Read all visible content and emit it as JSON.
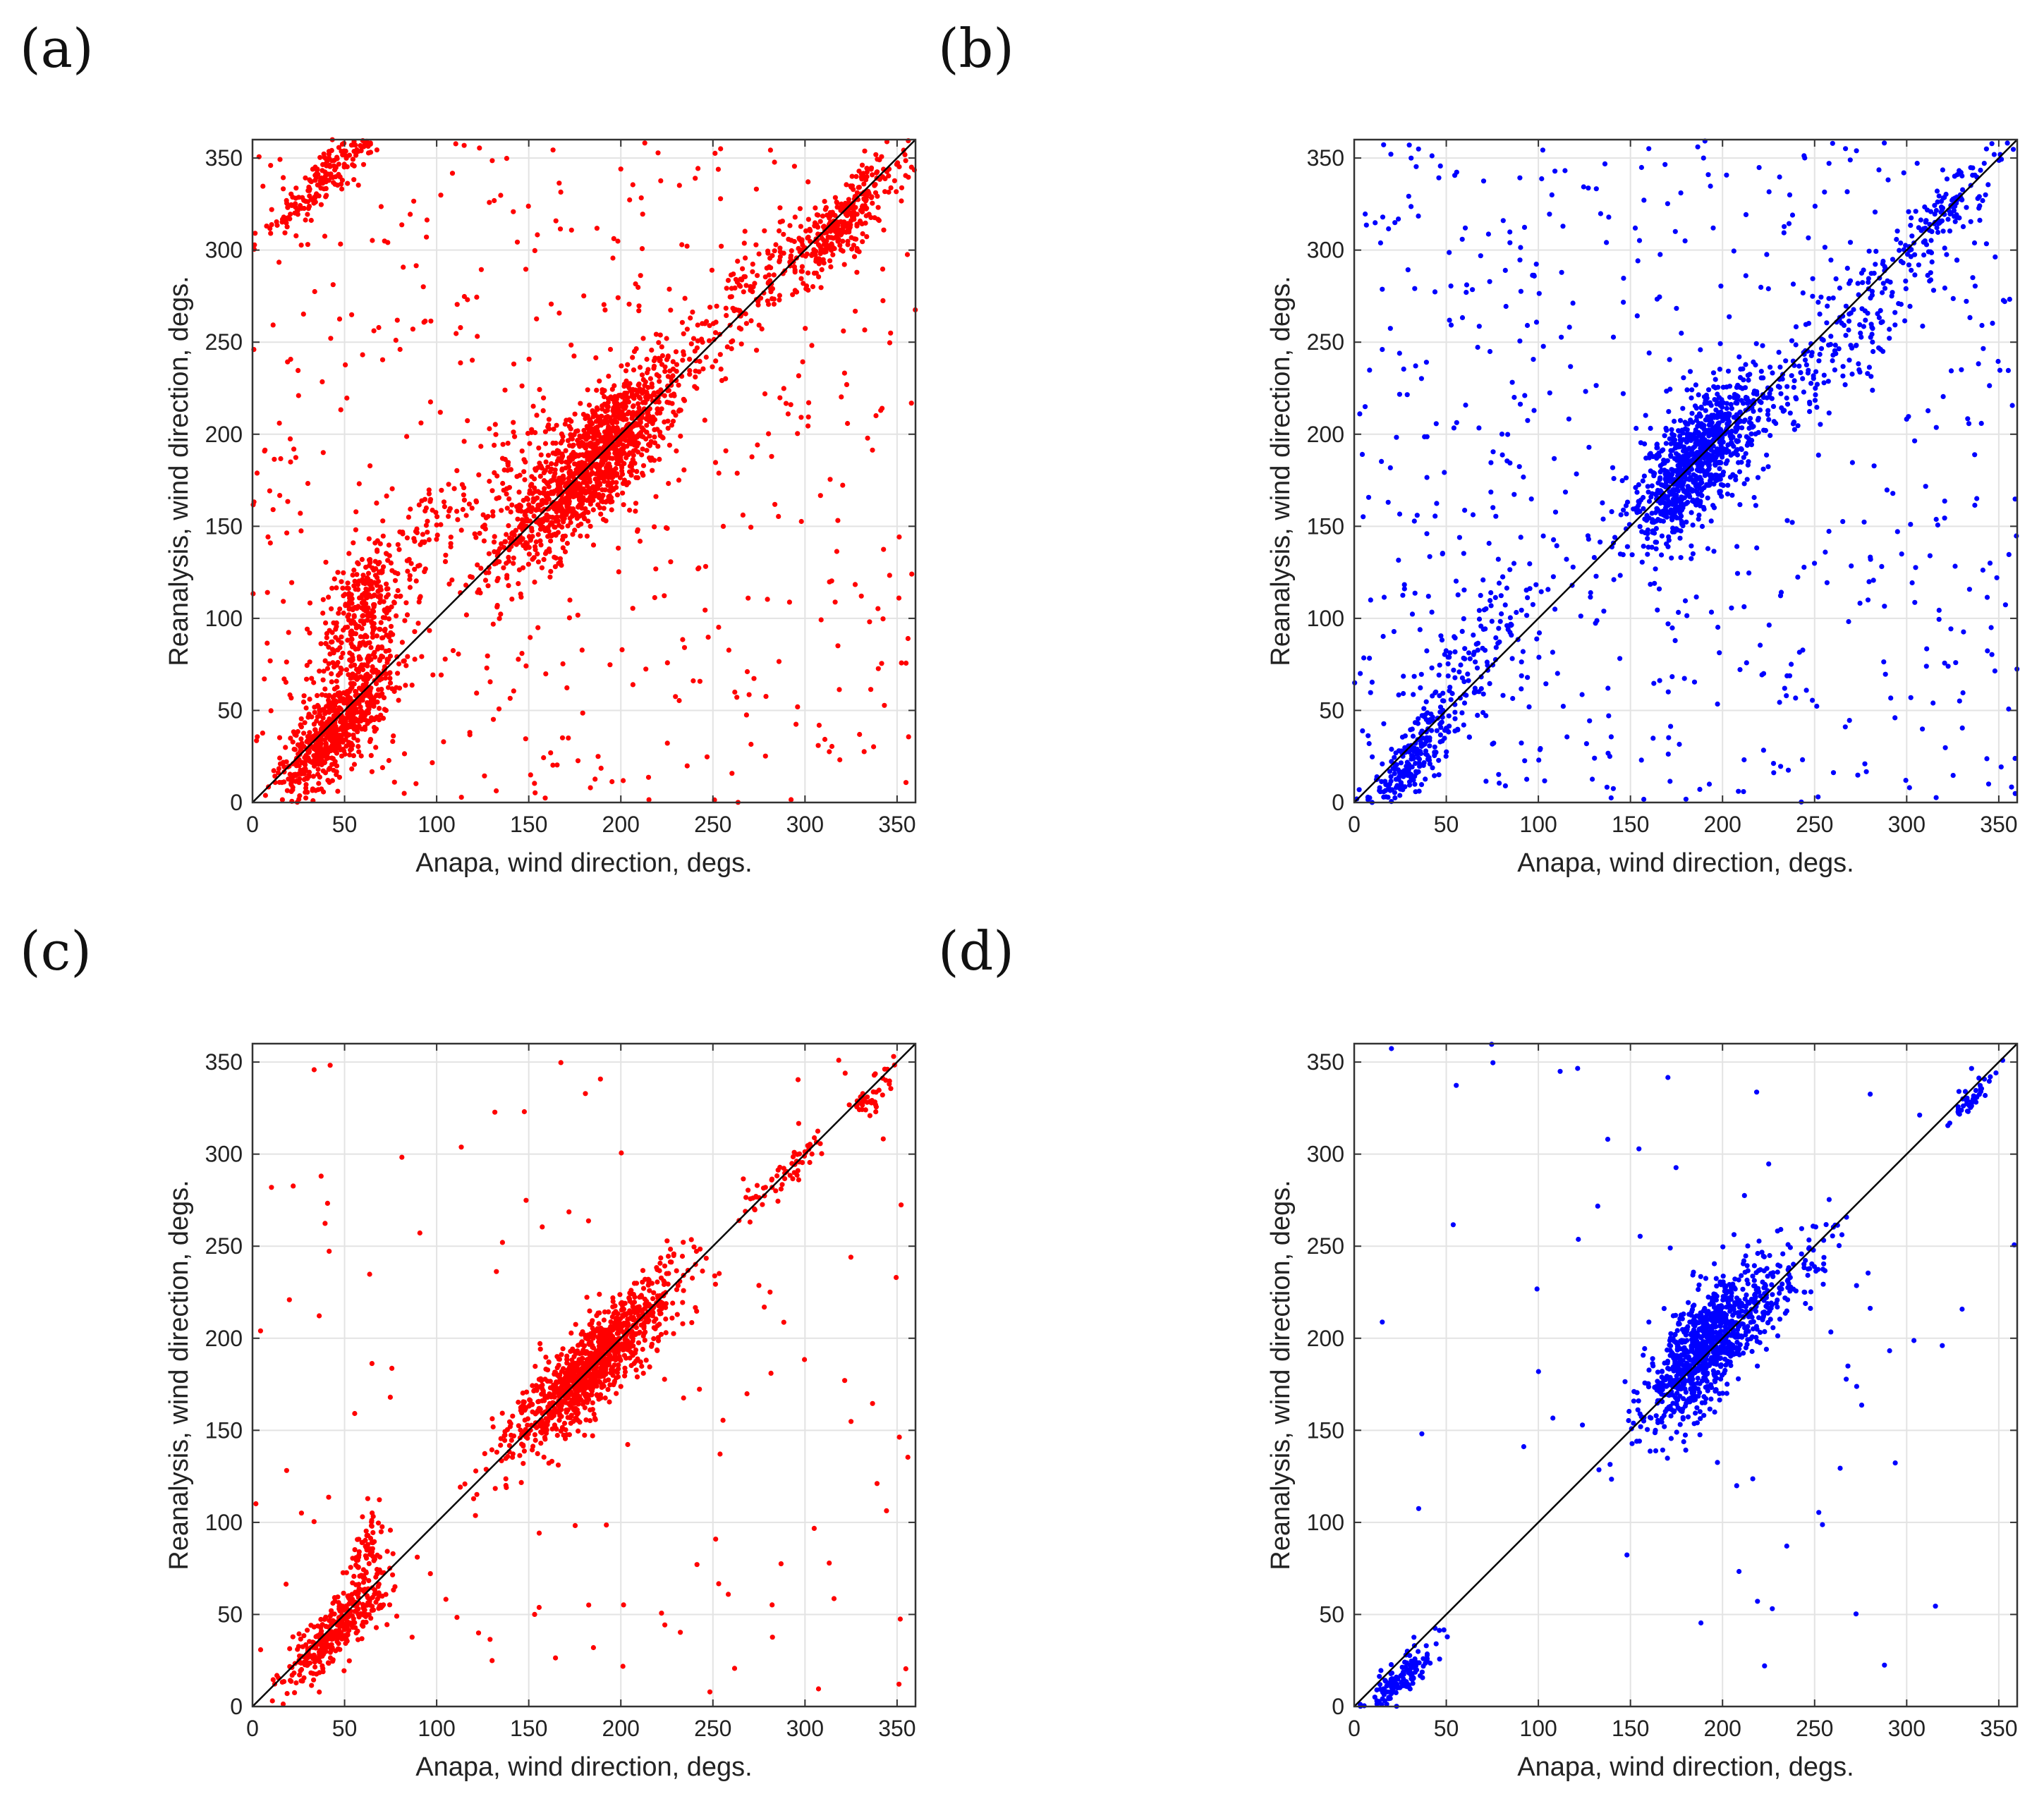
{
  "chart_data": [
    {
      "panel": "(a)",
      "type": "scatter",
      "color": "#ff0000",
      "xlabel": "Anapa, wind direction, degs.",
      "ylabel": "Reanalysis, wind direction, degs.",
      "xlim": [
        0,
        360
      ],
      "ylim": [
        0,
        360
      ],
      "xticks": [
        0,
        50,
        100,
        150,
        200,
        250,
        300,
        350
      ],
      "yticks": [
        0,
        50,
        100,
        150,
        200,
        250,
        300,
        350
      ],
      "grid": true,
      "reference_line": {
        "from": [
          0,
          0
        ],
        "to": [
          360,
          360
        ]
      },
      "clusters": [
        {
          "cx": 185,
          "cy": 185,
          "sx": 25,
          "sy": 30,
          "n": 1300
        },
        {
          "cx": 45,
          "cy": 40,
          "sx": 15,
          "sy": 22,
          "n": 700
        },
        {
          "cx": 60,
          "cy": 100,
          "sx": 12,
          "sy": 35,
          "n": 300
        },
        {
          "cx": 320,
          "cy": 315,
          "sx": 18,
          "sy": 18,
          "n": 350
        },
        {
          "cx": 40,
          "cy": 340,
          "sx": 20,
          "sy": 12,
          "n": 200
        },
        {
          "cx": 100,
          "cy": 150,
          "sx": 40,
          "sy": 20,
          "n": 150
        },
        {
          "cx": 270,
          "cy": 280,
          "sx": 18,
          "sy": 20,
          "n": 120
        }
      ],
      "background_points": 500
    },
    {
      "panel": "(b)",
      "type": "scatter",
      "color": "#0000ff",
      "xlabel": "Anapa, wind direction, degs.",
      "ylabel": "Reanalysis, wind direction, degs.",
      "xlim": [
        0,
        360
      ],
      "ylim": [
        0,
        360
      ],
      "xticks": [
        0,
        50,
        100,
        150,
        200,
        250,
        300,
        350
      ],
      "yticks": [
        0,
        50,
        100,
        150,
        200,
        250,
        300,
        350
      ],
      "grid": true,
      "reference_line": {
        "from": [
          0,
          0
        ],
        "to": [
          360,
          360
        ]
      },
      "clusters": [
        {
          "cx": 185,
          "cy": 185,
          "sx": 18,
          "sy": 30,
          "n": 900
        },
        {
          "cx": 30,
          "cy": 20,
          "sx": 12,
          "sy": 15,
          "n": 200
        },
        {
          "cx": 60,
          "cy": 70,
          "sx": 20,
          "sy": 30,
          "n": 150
        },
        {
          "cx": 270,
          "cy": 260,
          "sx": 30,
          "sy": 30,
          "n": 200
        },
        {
          "cx": 320,
          "cy": 320,
          "sx": 15,
          "sy": 15,
          "n": 100
        }
      ],
      "background_points": 600
    },
    {
      "panel": "(c)",
      "type": "scatter",
      "color": "#ff0000",
      "xlabel": "Anapa, wind direction, degs.",
      "ylabel": "Reanalysis, wind direction, degs.",
      "xlim": [
        0,
        360
      ],
      "ylim": [
        0,
        360
      ],
      "xticks": [
        0,
        50,
        100,
        150,
        200,
        250,
        300,
        350
      ],
      "yticks": [
        0,
        50,
        100,
        150,
        200,
        250,
        300,
        350
      ],
      "grid": true,
      "reference_line": {
        "from": [
          0,
          0
        ],
        "to": [
          360,
          360
        ]
      },
      "clusters": [
        {
          "cx": 185,
          "cy": 185,
          "sx": 22,
          "sy": 22,
          "n": 1100
        },
        {
          "cx": 45,
          "cy": 40,
          "sx": 15,
          "sy": 15,
          "n": 350
        },
        {
          "cx": 62,
          "cy": 85,
          "sx": 5,
          "sy": 20,
          "n": 80
        },
        {
          "cx": 290,
          "cy": 290,
          "sx": 12,
          "sy": 10,
          "n": 60
        },
        {
          "cx": 335,
          "cy": 330,
          "sx": 6,
          "sy": 10,
          "n": 40
        }
      ],
      "background_points": 120
    },
    {
      "panel": "(d)",
      "type": "scatter",
      "color": "#0000ff",
      "xlabel": "Anapa, wind direction, degs.",
      "ylabel": "Reanalysis, wind direction, degs.",
      "xlim": [
        0,
        360
      ],
      "ylim": [
        0,
        360
      ],
      "xticks": [
        0,
        50,
        100,
        150,
        200,
        250,
        300,
        350
      ],
      "yticks": [
        0,
        50,
        100,
        150,
        200,
        250,
        300,
        350
      ],
      "grid": true,
      "reference_line": {
        "from": [
          0,
          0
        ],
        "to": [
          360,
          360
        ]
      },
      "clusters": [
        {
          "cx": 190,
          "cy": 195,
          "sx": 16,
          "sy": 28,
          "n": 900
        },
        {
          "cx": 25,
          "cy": 15,
          "sx": 10,
          "sy": 10,
          "n": 150
        },
        {
          "cx": 230,
          "cy": 225,
          "sx": 18,
          "sy": 20,
          "n": 120
        },
        {
          "cx": 335,
          "cy": 330,
          "sx": 6,
          "sy": 6,
          "n": 40
        }
      ],
      "background_points": 70
    }
  ]
}
